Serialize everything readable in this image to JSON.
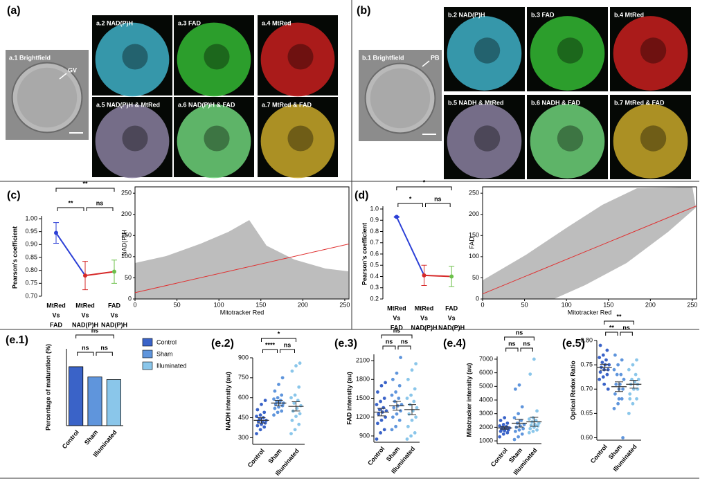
{
  "figure_a": {
    "label": "(a)",
    "panels": [
      "a.1 Brightfield",
      "a.2 NAD(P)H",
      "a.3 FAD",
      "a.4 MtRed",
      "a.5 NAD(P)H & MtRed",
      "a.6 NAD(P)H & FAD",
      "a.7 MtRed & FAD"
    ],
    "arrow_label": "GV"
  },
  "figure_b": {
    "label": "(b)",
    "panels": [
      "b.1 Brightfield",
      "b.2 NAD(P)H",
      "b.3 FAD",
      "b.4 MtRed",
      "b.5 NADH & MtRed",
      "b.6 NADH & FAD",
      "b.7 MtRed & FAD"
    ],
    "arrow_label": "PB"
  },
  "chart_data": [
    {
      "type": "line",
      "panel_label": "(c)",
      "y_label": "Pearson's coefficient",
      "categories": [
        [
          "MtRed",
          "Vs",
          "FAD"
        ],
        [
          "MtRed",
          "Vs",
          "NAD(P)H"
        ],
        [
          "FAD",
          "Vs",
          "NAD(P)H"
        ]
      ],
      "values": [
        0.945,
        0.78,
        0.795
      ],
      "errors": [
        0.04,
        0.055,
        0.045
      ],
      "colors": [
        "#2b3fd6",
        "#d62828",
        "#6cc04a"
      ],
      "ylim": [
        0.7,
        1.0
      ],
      "yticks": [
        {
          "value": 0.7,
          "label": "0.70"
        },
        0.75,
        {
          "value": 0.8,
          "label": "0.80"
        },
        0.85,
        {
          "value": 0.9,
          "label": "0.90"
        },
        0.95,
        {
          "value": 1.0,
          "label": "1.00"
        }
      ],
      "annotations": [
        "**",
        "**",
        "ns"
      ]
    },
    {
      "type": "scatter",
      "x_label": "Mitotracker Red",
      "y_label": "NAD(P)H",
      "xlim": [
        0,
        255
      ],
      "ylim": [
        0,
        265
      ],
      "xticks": [
        0,
        50,
        100,
        150,
        200,
        250
      ],
      "yticks": [
        0,
        50,
        100,
        150,
        200,
        250
      ],
      "fit_line": {
        "x": [
          0,
          255
        ],
        "y": [
          15,
          130
        ]
      },
      "fit_color": "#e03030"
    },
    {
      "type": "line",
      "panel_label": "(d)",
      "y_label": "Pearson's coefficient",
      "categories": [
        [
          "MtRed",
          "Vs",
          "FAD"
        ],
        [
          "MtRed",
          "Vs",
          "NAD(P)H"
        ],
        [
          "FAD",
          "Vs",
          "NAD(P)H"
        ]
      ],
      "values": [
        0.93,
        0.41,
        0.4
      ],
      "errors": [
        0.005,
        0.09,
        0.09
      ],
      "colors": [
        "#2b3fd6",
        "#d62828",
        "#6cc04a"
      ],
      "ylim": [
        0.2,
        1.0
      ],
      "yticks": [
        0.2,
        0.3,
        0.4,
        0.5,
        0.6,
        0.7,
        0.8,
        0.9,
        {
          "value": 1.0,
          "label": "1.0"
        }
      ],
      "annotations": [
        "*",
        "*",
        "ns"
      ]
    },
    {
      "type": "scatter",
      "x_label": "Mitotracker Red",
      "y_label": "FAD",
      "xlim": [
        0,
        255
      ],
      "ylim": [
        0,
        265
      ],
      "xticks": [
        0,
        50,
        100,
        150,
        200,
        250
      ],
      "yticks": [
        0,
        50,
        100,
        150,
        200,
        250
      ],
      "fit_line": {
        "x": [
          0,
          255
        ],
        "y": [
          12,
          220
        ]
      },
      "fit_color": "#e03030"
    },
    {
      "type": "bar",
      "panel_label": "(e.1)",
      "y_label": "Percentage of maturation (%)",
      "categories": [
        "Control",
        "Sham",
        "Illuminated"
      ],
      "values": [
        46,
        38,
        36
      ],
      "colors": [
        "#3a63c8",
        "#5f95dc",
        "#8ac6ea"
      ],
      "ylim": [
        0,
        60
      ],
      "legend": "right",
      "annotations": [
        "ns",
        "ns",
        "ns"
      ]
    },
    {
      "type": "dot",
      "panel_label": "(e.2)",
      "y_label": "NADH intensity (au)",
      "ylim": [
        250,
        900
      ],
      "yticks": [
        300,
        450,
        600,
        750,
        900
      ],
      "annotations": [
        "*",
        "****",
        "ns"
      ],
      "groups": [
        {
          "name": "Control",
          "color": "#3a63c8",
          "values": [
            330,
            360,
            380,
            390,
            400,
            410,
            420,
            420,
            430,
            440,
            450,
            460,
            470,
            490,
            510,
            550,
            580
          ],
          "mean": 430,
          "sem": 20
        },
        {
          "name": "Sham",
          "color": "#5f95dc",
          "values": [
            470,
            490,
            500,
            520,
            530,
            540,
            550,
            560,
            560,
            570,
            580,
            590,
            600,
            620,
            650,
            700,
            750
          ],
          "mean": 560,
          "sem": 20
        },
        {
          "name": "Illuminated",
          "color": "#8ac6ea",
          "values": [
            330,
            360,
            400,
            430,
            460,
            480,
            500,
            520,
            540,
            560,
            580,
            600,
            620,
            680,
            800,
            840,
            860
          ],
          "mean": 535,
          "sem": 35
        }
      ]
    },
    {
      "type": "dot",
      "panel_label": "(e.3)",
      "y_label": "FAD intensity (au)",
      "ylim": [
        800,
        2200
      ],
      "yticks": [
        900,
        1200,
        1500,
        1800,
        2100
      ],
      "annotations": [
        "ns",
        "ns",
        "ns"
      ],
      "groups": [
        {
          "name": "Control",
          "color": "#3a63c8",
          "values": [
            850,
            950,
            1000,
            1100,
            1150,
            1200,
            1250,
            1280,
            1300,
            1320,
            1350,
            1400,
            1450,
            1500,
            1600,
            1700,
            1750
          ],
          "mean": 1280,
          "sem": 60
        },
        {
          "name": "Sham",
          "color": "#5f95dc",
          "values": [
            1000,
            1050,
            1150,
            1200,
            1250,
            1300,
            1350,
            1380,
            1400,
            1450,
            1500,
            1550,
            1600,
            1700,
            1800,
            1900,
            2150
          ],
          "mean": 1380,
          "sem": 70
        },
        {
          "name": "Illuminated",
          "color": "#8ac6ea",
          "values": [
            850,
            900,
            950,
            1050,
            1150,
            1200,
            1250,
            1300,
            1350,
            1400,
            1450,
            1500,
            1550,
            1650,
            1800,
            1950,
            2050
          ],
          "mean": 1320,
          "sem": 80
        }
      ]
    },
    {
      "type": "dot",
      "panel_label": "(e.4)",
      "y_label": "Mitotracker intensity (au)",
      "ylim": [
        800,
        7200
      ],
      "yticks": [
        1000,
        2000,
        3000,
        4000,
        5000,
        6000,
        7000
      ],
      "annotations": [
        "ns",
        "ns",
        "ns"
      ],
      "groups": [
        {
          "name": "Control",
          "color": "#3a63c8",
          "values": [
            1300,
            1500,
            1600,
            1700,
            1750,
            1800,
            1850,
            1900,
            1950,
            2000,
            2050,
            2100,
            2200,
            2300,
            2500,
            2700
          ],
          "mean": 1950,
          "sem": 90
        },
        {
          "name": "Sham",
          "color": "#5f95dc",
          "values": [
            1100,
            1300,
            1500,
            1700,
            1800,
            1900,
            2000,
            2100,
            2200,
            2300,
            2500,
            2700,
            3000,
            3500,
            4800,
            5100
          ],
          "mean": 2300,
          "sem": 280
        },
        {
          "name": "Illuminated",
          "color": "#8ac6ea",
          "values": [
            1600,
            1700,
            1800,
            1900,
            2000,
            2100,
            2150,
            2200,
            2300,
            2400,
            2500,
            2600,
            2700,
            3200,
            5900,
            7000
          ],
          "mean": 2400,
          "sem": 330
        }
      ]
    },
    {
      "type": "dot",
      "panel_label": "(e.5)",
      "y_label": "Optical Redox Ratio",
      "ylim": [
        0.595,
        0.8
      ],
      "yticks": [
        {
          "value": 0.6,
          "label": "0.60"
        },
        0.65,
        {
          "value": 0.7,
          "label": "0.70"
        },
        0.75,
        {
          "value": 0.8,
          "label": "0.80"
        }
      ],
      "annotations": [
        "**",
        "**",
        "ns"
      ],
      "groups": [
        {
          "name": "Control",
          "color": "#3a63c8",
          "values": [
            0.72,
            0.725,
            0.73,
            0.735,
            0.74,
            0.74,
            0.745,
            0.75,
            0.75,
            0.755,
            0.76,
            0.765,
            0.77,
            0.78,
            0.79,
            0.71,
            0.7
          ],
          "mean": 0.745,
          "sem": 0.006
        },
        {
          "name": "Sham",
          "color": "#5f95dc",
          "values": [
            0.66,
            0.67,
            0.68,
            0.69,
            0.7,
            0.7,
            0.71,
            0.71,
            0.72,
            0.73,
            0.73,
            0.74,
            0.75,
            0.76,
            0.77,
            0.68,
            0.6
          ],
          "mean": 0.705,
          "sem": 0.01
        },
        {
          "name": "Illuminated",
          "color": "#8ac6ea",
          "values": [
            0.65,
            0.67,
            0.68,
            0.69,
            0.7,
            0.7,
            0.71,
            0.715,
            0.72,
            0.72,
            0.73,
            0.74,
            0.75,
            0.76,
            0.68,
            0.7,
            0.71
          ],
          "mean": 0.71,
          "sem": 0.008
        }
      ]
    }
  ]
}
